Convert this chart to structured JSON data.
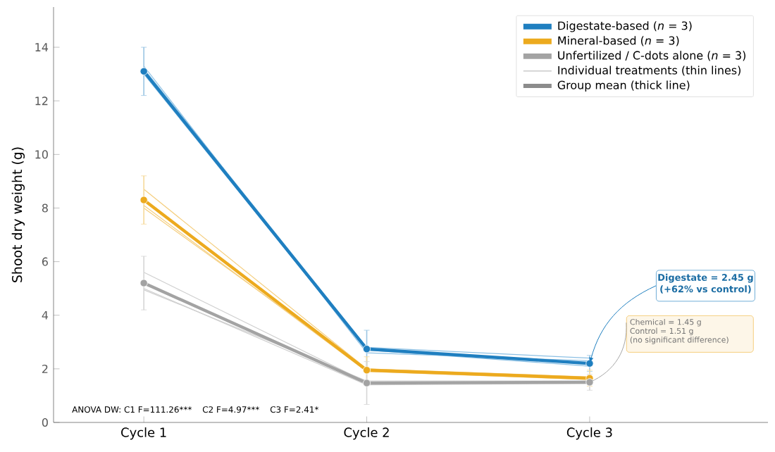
{
  "chart_data": {
    "type": "line",
    "ylabel": "Shoot dry weight (g)",
    "categories": [
      "Cycle 1",
      "Cycle 2",
      "Cycle 3"
    ],
    "ylim": [
      0,
      15.5
    ],
    "yticks": [
      0,
      2,
      4,
      6,
      8,
      10,
      12,
      14
    ],
    "legend": "top right",
    "series": [
      {
        "color": "#8cc0e4",
        "marker": "none",
        "values": [
          13.2,
          2.8,
          2.4
        ]
      },
      {
        "color": "#8cc0e4",
        "marker": "none",
        "values": [
          13.0,
          2.7,
          2.1
        ]
      },
      {
        "color": "#8cc0e4",
        "marker": "none",
        "values": [
          13.3,
          2.6,
          2.3
        ]
      },
      {
        "color": "#f5cf80",
        "marker": "none",
        "values": [
          8.7,
          2.0,
          1.7
        ]
      },
      {
        "color": "#f5cf80",
        "marker": "none",
        "values": [
          8.1,
          1.9,
          1.6
        ]
      },
      {
        "color": "#f5cf80",
        "marker": "none",
        "values": [
          8.0,
          2.0,
          1.65
        ]
      },
      {
        "color": "#cfcfcf",
        "marker": "none",
        "values": [
          5.6,
          1.5,
          1.5
        ]
      },
      {
        "color": "#cfcfcf",
        "marker": "none",
        "values": [
          5.0,
          1.4,
          1.45
        ]
      },
      {
        "color": "#cfcfcf",
        "marker": "none",
        "values": [
          4.95,
          1.55,
          1.55
        ]
      },
      {
        "name": "Digestate-based (*n* = 3)",
        "color": "#1f7fc0",
        "marker": "circle",
        "values": [
          13.1,
          2.74,
          2.2
        ],
        "errors": [
          0.9,
          0.7,
          0.3
        ]
      },
      {
        "name": "Mineral-based (*n* = 3)",
        "color": "#ecaa1e",
        "marker": "circle",
        "values": [
          8.3,
          1.95,
          1.65
        ],
        "errors": [
          0.9,
          0.5,
          0.3
        ]
      },
      {
        "name": "Unfertilized / C-dots alone (*n* = 3)",
        "color": "#a3a3a3",
        "marker": "circle",
        "values": [
          5.2,
          1.47,
          1.5
        ],
        "errors": [
          1.0,
          0.8,
          0.3
        ]
      }
    ],
    "annotations": [
      "ANOVA DW: C1 F=111.26***",
      "C2 F=4.97***",
      "C3 F=2.41*",
      {
        "text": "Digestate = 2.45 g",
        "x": "Cycle 3",
        "y": 2.2
      },
      "(+62% vs control)",
      {
        "text": "Chemical = 1.45 g",
        "x": "Cycle 3",
        "y": 1.5
      },
      "Control = 1.51 g",
      "(no significant difference)",
      "Individual treatments (thin lines)",
      "Group mean (thick line)"
    ]
  }
}
